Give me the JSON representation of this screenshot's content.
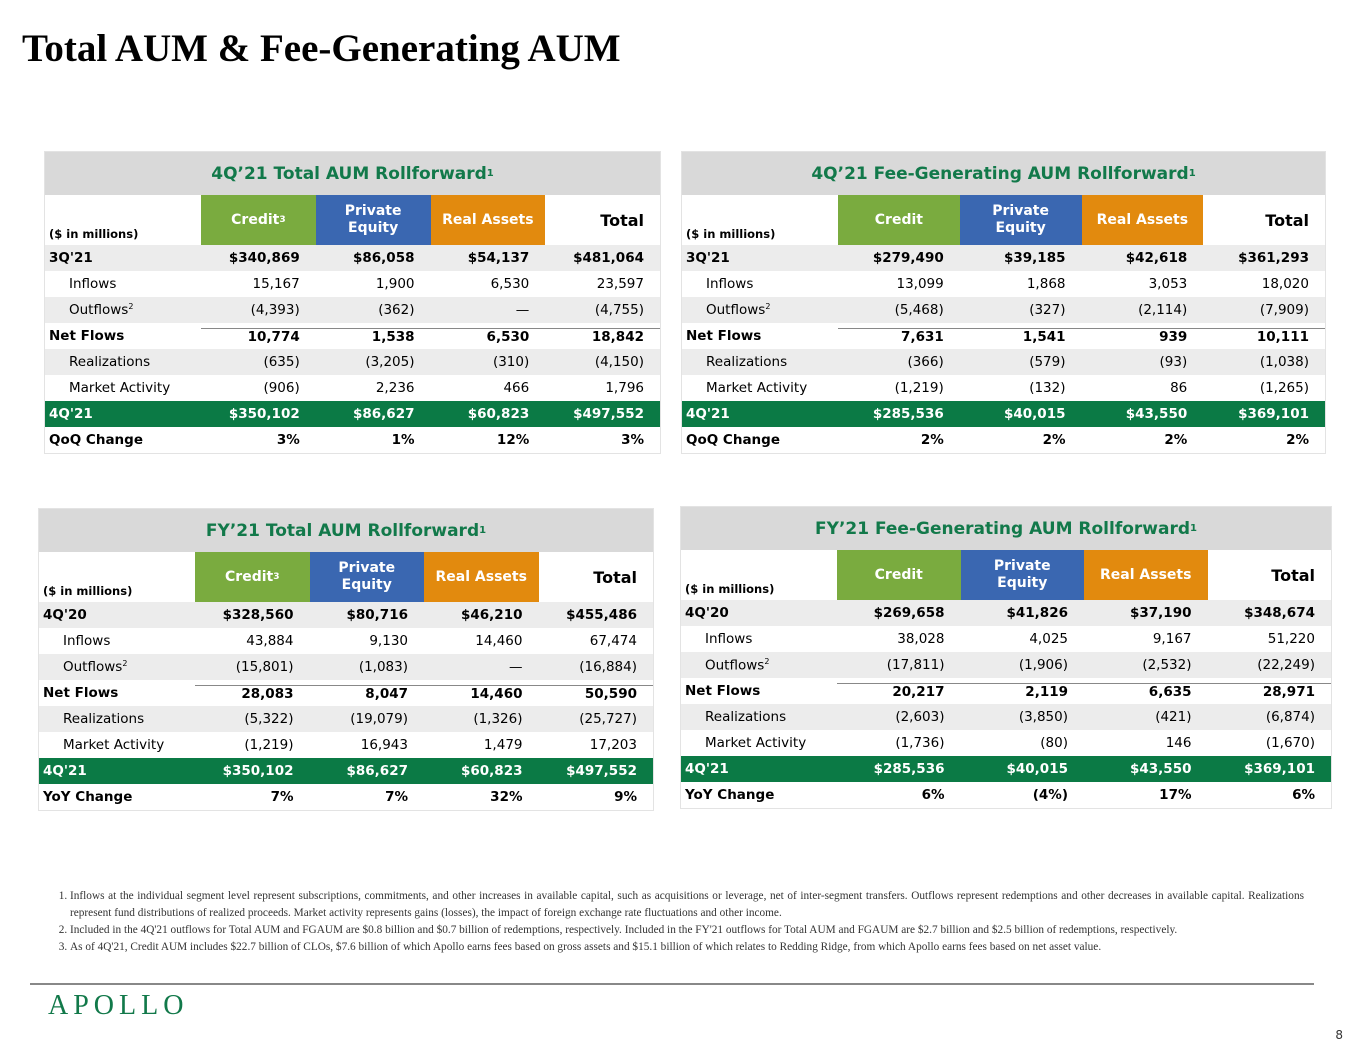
{
  "page_title": "Total AUM & Fee-Generating AUM",
  "colors": {
    "credit": "#7aab3f",
    "private_equity": "#3a67b1",
    "real_assets": "#e28a0e",
    "green": "#0b7a45"
  },
  "tables": [
    {
      "title": "4Q’21 Total AUM Rollforward",
      "title_sup": "1",
      "unit": "($ in millions)",
      "columns": [
        {
          "label": "Credit",
          "sup": "3"
        },
        {
          "label": "Private Equity"
        },
        {
          "label": "Real Assets"
        },
        {
          "label": "Total"
        }
      ],
      "rows": [
        {
          "label": "3Q'21",
          "values": [
            "$340,869",
            "$86,058",
            "$54,137",
            "$481,064"
          ]
        },
        {
          "label": "Inflows",
          "values": [
            "15,167",
            "1,900",
            "6,530",
            "23,597"
          ]
        },
        {
          "label": "Outflows",
          "sup": "2",
          "values": [
            "(4,393)",
            "(362)",
            "—",
            "(4,755)"
          ]
        },
        {
          "label": "Net Flows",
          "values": [
            "10,774",
            "1,538",
            "6,530",
            "18,842"
          ]
        },
        {
          "label": "Realizations",
          "values": [
            "(635)",
            "(3,205)",
            "(310)",
            "(4,150)"
          ]
        },
        {
          "label": "Market Activity",
          "values": [
            "(906)",
            "2,236",
            "466",
            "1,796"
          ]
        },
        {
          "label": "4Q'21",
          "values": [
            "$350,102",
            "$86,627",
            "$60,823",
            "$497,552"
          ]
        },
        {
          "label": "QoQ Change",
          "values": [
            "3%",
            "1%",
            "12%",
            "3%"
          ]
        }
      ]
    },
    {
      "title": "4Q’21 Fee-Generating AUM Rollforward",
      "title_sup": "1",
      "unit": "($ in millions)",
      "columns": [
        {
          "label": "Credit"
        },
        {
          "label": "Private Equity"
        },
        {
          "label": "Real Assets"
        },
        {
          "label": "Total"
        }
      ],
      "rows": [
        {
          "label": "3Q'21",
          "values": [
            "$279,490",
            "$39,185",
            "$42,618",
            "$361,293"
          ]
        },
        {
          "label": "Inflows",
          "values": [
            "13,099",
            "1,868",
            "3,053",
            "18,020"
          ]
        },
        {
          "label": "Outflows",
          "sup": "2",
          "values": [
            "(5,468)",
            "(327)",
            "(2,114)",
            "(7,909)"
          ]
        },
        {
          "label": "Net Flows",
          "values": [
            "7,631",
            "1,541",
            "939",
            "10,111"
          ]
        },
        {
          "label": "Realizations",
          "values": [
            "(366)",
            "(579)",
            "(93)",
            "(1,038)"
          ]
        },
        {
          "label": "Market Activity",
          "values": [
            "(1,219)",
            "(132)",
            "86",
            "(1,265)"
          ]
        },
        {
          "label": "4Q'21",
          "values": [
            "$285,536",
            "$40,015",
            "$43,550",
            "$369,101"
          ]
        },
        {
          "label": "QoQ Change",
          "values": [
            "2%",
            "2%",
            "2%",
            "2%"
          ]
        }
      ]
    },
    {
      "title": "FY’21 Total AUM Rollforward",
      "title_sup": "1",
      "unit": "($ in millions)",
      "columns": [
        {
          "label": "Credit",
          "sup": "3"
        },
        {
          "label": "Private Equity"
        },
        {
          "label": "Real Assets"
        },
        {
          "label": "Total"
        }
      ],
      "rows": [
        {
          "label": "4Q'20",
          "values": [
            "$328,560",
            "$80,716",
            "$46,210",
            "$455,486"
          ]
        },
        {
          "label": "Inflows",
          "values": [
            "43,884",
            "9,130",
            "14,460",
            "67,474"
          ]
        },
        {
          "label": "Outflows",
          "sup": "2",
          "values": [
            "(15,801)",
            "(1,083)",
            "—",
            "(16,884)"
          ]
        },
        {
          "label": "Net Flows",
          "values": [
            "28,083",
            "8,047",
            "14,460",
            "50,590"
          ]
        },
        {
          "label": "Realizations",
          "values": [
            "(5,322)",
            "(19,079)",
            "(1,326)",
            "(25,727)"
          ]
        },
        {
          "label": "Market Activity",
          "values": [
            "(1,219)",
            "16,943",
            "1,479",
            "17,203"
          ]
        },
        {
          "label": "4Q'21",
          "values": [
            "$350,102",
            "$86,627",
            "$60,823",
            "$497,552"
          ]
        },
        {
          "label": "YoY Change",
          "values": [
            "7%",
            "7%",
            "32%",
            "9%"
          ]
        }
      ]
    },
    {
      "title": "FY’21 Fee-Generating AUM Rollforward",
      "title_sup": "1",
      "unit": "($ in millions)",
      "columns": [
        {
          "label": "Credit"
        },
        {
          "label": "Private Equity"
        },
        {
          "label": "Real Assets"
        },
        {
          "label": "Total"
        }
      ],
      "rows": [
        {
          "label": "4Q'20",
          "values": [
            "$269,658",
            "$41,826",
            "$37,190",
            "$348,674"
          ]
        },
        {
          "label": "Inflows",
          "values": [
            "38,028",
            "4,025",
            "9,167",
            "51,220"
          ]
        },
        {
          "label": "Outflows",
          "sup": "2",
          "values": [
            "(17,811)",
            "(1,906)",
            "(2,532)",
            "(22,249)"
          ]
        },
        {
          "label": "Net Flows",
          "values": [
            "20,217",
            "2,119",
            "6,635",
            "28,971"
          ]
        },
        {
          "label": "Realizations",
          "values": [
            "(2,603)",
            "(3,850)",
            "(421)",
            "(6,874)"
          ]
        },
        {
          "label": "Market Activity",
          "values": [
            "(1,736)",
            "(80)",
            "146",
            "(1,670)"
          ]
        },
        {
          "label": "4Q'21",
          "values": [
            "$285,536",
            "$40,015",
            "$43,550",
            "$369,101"
          ]
        },
        {
          "label": "YoY Change",
          "values": [
            "6%",
            "(4%)",
            "17%",
            "6%"
          ]
        }
      ]
    }
  ],
  "footnotes": [
    "Inflows at the individual segment level represent subscriptions, commitments, and other increases in available capital, such as acquisitions or leverage, net of inter-segment transfers. Outflows represent redemptions and other decreases in available capital. Realizations represent fund distributions of realized proceeds. Market activity represents gains (losses), the impact of foreign exchange rate fluctuations and other income.",
    "Included in the 4Q'21 outflows for Total AUM and FGAUM are $0.8 billion and $0.7 billion of redemptions, respectively. Included in the FY'21 outflows for Total AUM and FGAUM are $2.7 billion and $2.5 billion of redemptions, respectively.",
    "As of 4Q'21, Credit AUM includes $22.7 billion of CLOs, $7.6 billion of which Apollo earns fees based on gross assets and $15.1 billion of which relates to Redding Ridge, from which Apollo earns fees based on net asset value."
  ],
  "logo": "APOLLO",
  "page_number": "8"
}
